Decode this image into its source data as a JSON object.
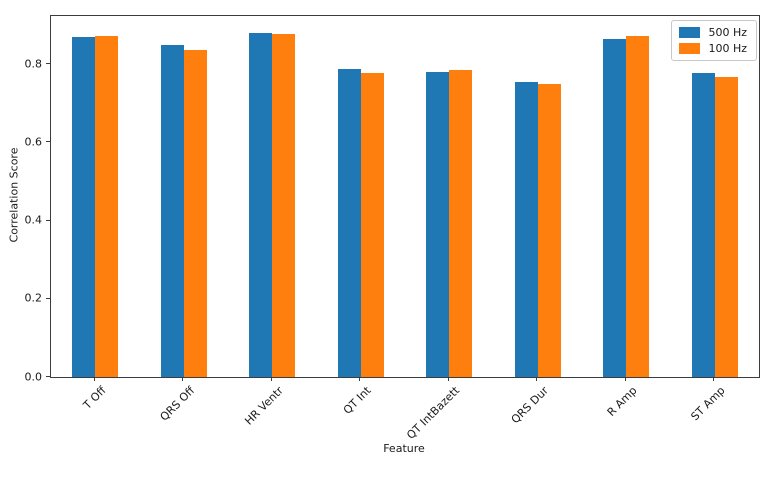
{
  "chart_data": {
    "type": "bar",
    "title": "",
    "xlabel": "Feature",
    "ylabel": "Correlation Score",
    "categories": [
      "T Off",
      "QRS Off",
      "HR Ventr",
      "QT Int",
      "QT IntBazett",
      "QRS Dur",
      "R Amp",
      "ST Amp"
    ],
    "series": [
      {
        "name": "500 Hz",
        "color": "#1f77b4",
        "values": [
          0.87,
          0.85,
          0.88,
          0.788,
          0.781,
          0.755,
          0.865,
          0.777
        ]
      },
      {
        "name": "100 Hz",
        "color": "#ff7f0e",
        "values": [
          0.873,
          0.837,
          0.877,
          0.777,
          0.786,
          0.75,
          0.872,
          0.766
        ]
      }
    ],
    "ylim": [
      0.0,
      0.923
    ],
    "yticks": [
      0.0,
      0.2,
      0.4,
      0.6,
      0.8
    ],
    "legend_position": "upper right",
    "grid": false,
    "background_color": "#ffffff",
    "spine_color": "#3c3c3c"
  }
}
